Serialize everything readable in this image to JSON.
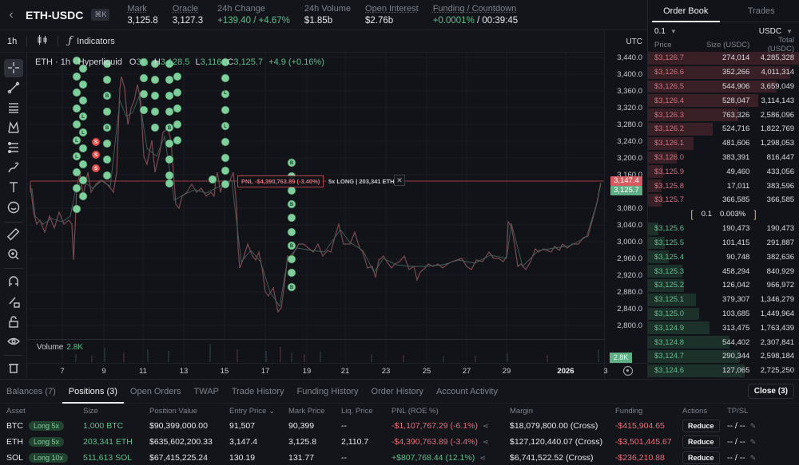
{
  "header": {
    "symbol": "ETH-USDC",
    "shortcut": "⌘K",
    "stats": [
      {
        "label": "Mark",
        "value": "3,125.8",
        "color": "default",
        "dotted": true
      },
      {
        "label": "Oracle",
        "value": "3,127.3",
        "color": "default",
        "dotted": true
      },
      {
        "label": "24h Change",
        "value": "+139.40 / +4.67%",
        "color": "green",
        "dotted": false
      },
      {
        "label": "24h Volume",
        "value": "$1.85b",
        "color": "default",
        "dotted": false
      },
      {
        "label": "Open Interest",
        "value": "$2.76b",
        "color": "default",
        "dotted": true
      },
      {
        "label": "Funding / Countdown",
        "value_green": "+0.0001%",
        "value_rest": " / 00:39:45",
        "dotted": true
      }
    ]
  },
  "chart_toolbar": {
    "timeframe": "1h",
    "indicators_label": "Indicators"
  },
  "chart": {
    "legend": {
      "title": "ETH · 1h · Hyperliquid",
      "o_label": "O",
      "o_value": "3,1",
      "h_label": "H",
      "h_value": "3,128.5",
      "l_label": "L",
      "l_value": "3,116",
      "c_label": "C",
      "c_value": "3,125.7",
      "change": "+4.9 (+0.16%)"
    },
    "position_line": {
      "pnl": "PNL -$4,390,763.89 (-3.40%)",
      "info": "5x LONG | 203,341 ETH",
      "close": "✕"
    },
    "utc_label": "UTC",
    "y_ticks": [
      "3,440.0",
      "3,400.0",
      "3,360.0",
      "3,320.0",
      "3,280.0",
      "3,240.0",
      "3,200.0",
      "3,160.0",
      "3,080.0",
      "3,040.0",
      "3,000.0",
      "2,960.0",
      "2,920.0",
      "2,880.0",
      "2,840.0",
      "2,800.0"
    ],
    "entry_tag": "3,147.4",
    "last_tag": "3,125.7",
    "volume_label": "Volume",
    "volume_value": "2.8K",
    "volume_tag": "2.8K",
    "x_ticks": [
      "7",
      "9",
      "11",
      "13",
      "15",
      "17",
      "19",
      "21",
      "23",
      "25",
      "27",
      "29",
      "2026",
      "3"
    ]
  },
  "orderbook": {
    "tabs": [
      "Order Book",
      "Trades"
    ],
    "tick_size": "0.1",
    "unit": "USDC",
    "columns": [
      "Price",
      "Size (USDC)",
      "Total (USDC)"
    ],
    "asks": [
      {
        "price": "$3,126.7",
        "size": "274,014",
        "total": "4,285,328",
        "depth": 100
      },
      {
        "price": "$3,126.6",
        "size": "352,266",
        "total": "4,011,314",
        "depth": 94
      },
      {
        "price": "$3,126.5",
        "size": "544,906",
        "total": "3,659,049",
        "depth": 85
      },
      {
        "price": "$3,126.4",
        "size": "528,047",
        "total": "3,114,143",
        "depth": 73
      },
      {
        "price": "$3,126.3",
        "size": "763,326",
        "total": "2,586,096",
        "depth": 60
      },
      {
        "price": "$3,126.2",
        "size": "524,716",
        "total": "1,822,769",
        "depth": 43
      },
      {
        "price": "$3,126.1",
        "size": "481,606",
        "total": "1,298,053",
        "depth": 30
      },
      {
        "price": "$3,126.0",
        "size": "383,391",
        "total": "816,447",
        "depth": 19
      },
      {
        "price": "$3,125.9",
        "size": "49,460",
        "total": "433,056",
        "depth": 10
      },
      {
        "price": "$3,125.8",
        "size": "17,011",
        "total": "383,596",
        "depth": 9
      },
      {
        "price": "$3,125.7",
        "size": "366,585",
        "total": "366,585",
        "depth": 9
      }
    ],
    "spread": {
      "value": "0.1",
      "percent": "0.003%"
    },
    "bids": [
      {
        "price": "$3,125.6",
        "size": "190,473",
        "total": "190,473",
        "depth": 7
      },
      {
        "price": "$3,125.5",
        "size": "101,415",
        "total": "291,887",
        "depth": 11
      },
      {
        "price": "$3,125.4",
        "size": "90,748",
        "total": "382,636",
        "depth": 14
      },
      {
        "price": "$3,125.3",
        "size": "458,294",
        "total": "840,929",
        "depth": 23
      },
      {
        "price": "$3,125.2",
        "size": "126,042",
        "total": "966,972",
        "depth": 24
      },
      {
        "price": "$3,125.1",
        "size": "379,307",
        "total": "1,346,279",
        "depth": 32
      },
      {
        "price": "$3,125.0",
        "size": "103,685",
        "total": "1,449,964",
        "depth": 34
      },
      {
        "price": "$3,124.9",
        "size": "313,475",
        "total": "1,763,439",
        "depth": 41
      },
      {
        "price": "$3,124.8",
        "size": "544,402",
        "total": "2,307,841",
        "depth": 54
      },
      {
        "price": "$3,124.7",
        "size": "290,344",
        "total": "2,598,184",
        "depth": 61
      },
      {
        "price": "$3,124.6",
        "size": "127,065",
        "total": "2,725,250",
        "depth": 64
      }
    ]
  },
  "bottom": {
    "tabs": [
      "Balances (7)",
      "Positions (3)",
      "Open Orders",
      "TWAP",
      "Trade History",
      "Funding History",
      "Order History",
      "Account Activity"
    ],
    "active_tab": 1,
    "close_all": "Close (3)",
    "columns": [
      "Asset",
      "Size",
      "Position Value",
      "Entry Price",
      "Mark Price",
      "Liq. Price",
      "PNL (ROE %)",
      "Margin",
      "Funding",
      "Actions",
      "TP/SL"
    ],
    "positions": [
      {
        "asset": "BTC",
        "leverage": "Long 5x",
        "size": "1,000 BTC",
        "value": "$90,399,000.00",
        "entry": "91,507",
        "mark": "90,399",
        "liq": "--",
        "pnl": "-$1,107,767.29 (-6.1%)",
        "pnl_sign": "neg",
        "margin": "$18,079,800.00 (Cross)",
        "funding": "-$415,904.65",
        "action": "Reduce",
        "tpsl": "-- / --"
      },
      {
        "asset": "ETH",
        "leverage": "Long 5x",
        "size": "203,341 ETH",
        "value": "$635,602,200.33",
        "entry": "3,147.4",
        "mark": "3,125.8",
        "liq": "2,110.7",
        "pnl": "-$4,390,763.89 (-3.4%)",
        "pnl_sign": "neg",
        "margin": "$127,120,440.07 (Cross)",
        "funding": "-$3,501,445.67",
        "action": "Reduce",
        "tpsl": "-- / --"
      },
      {
        "asset": "SOL",
        "leverage": "Long 10x",
        "size": "511,613 SOL",
        "value": "$67,415,225.24",
        "entry": "130.19",
        "mark": "131.77",
        "liq": "--",
        "pnl": "+$807,768.44 (12.1%)",
        "pnl_sign": "pos",
        "margin": "$6,741,522.52 (Cross)",
        "funding": "-$236,210.88",
        "action": "Reduce",
        "tpsl": "-- / --"
      }
    ]
  },
  "colors": {
    "green": "#5fbf8a",
    "red": "#e0707a",
    "background": "#121319",
    "marker_buy": "#7fcf9c",
    "marker_sell": "#e0524f"
  }
}
